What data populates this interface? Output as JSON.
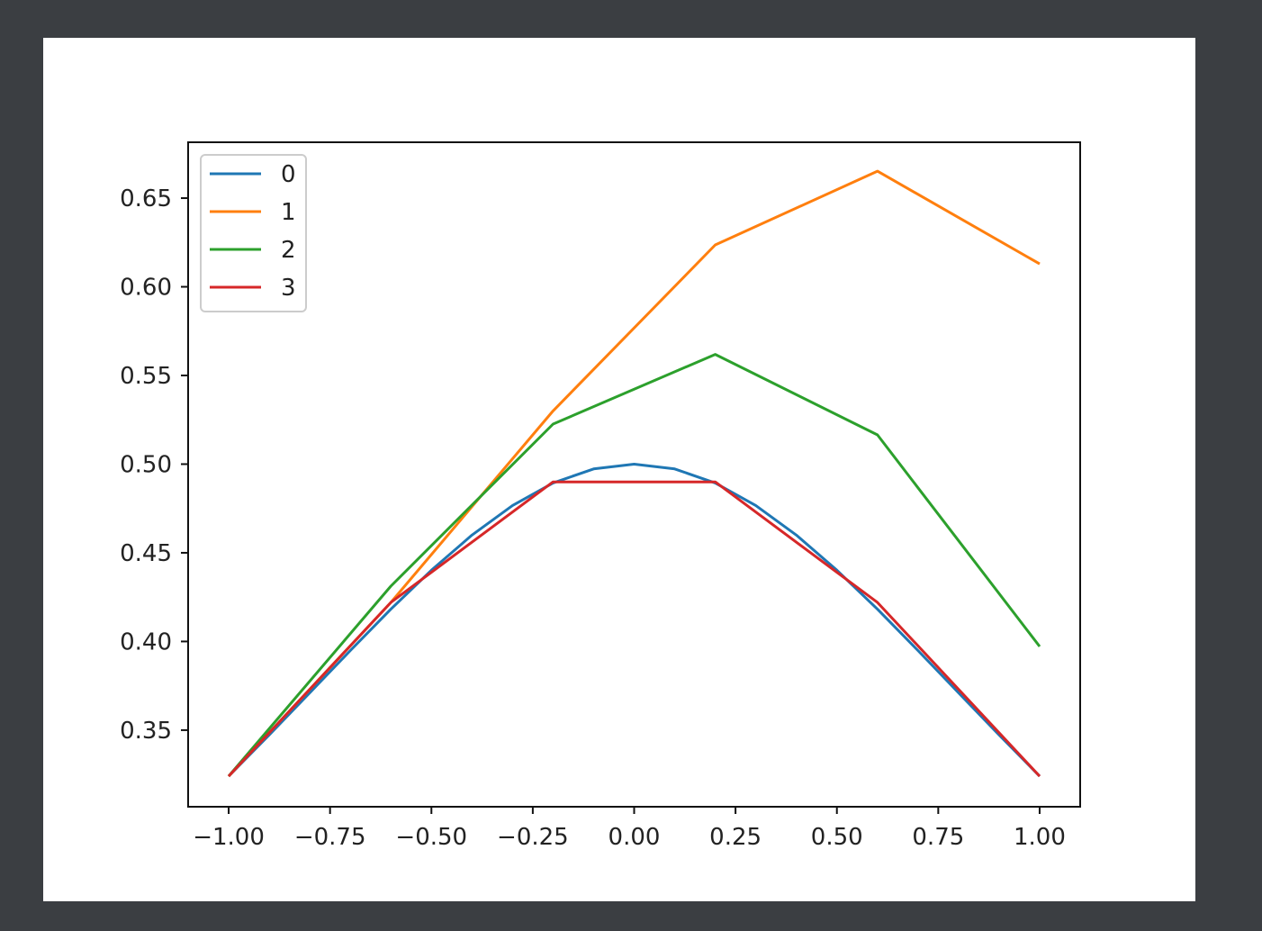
{
  "chart_data": {
    "type": "line",
    "title": "",
    "xlabel": "",
    "ylabel": "",
    "xlim": [
      -1.1,
      1.1
    ],
    "ylim": [
      0.3068,
      0.6815
    ],
    "xticks": [
      -1.0,
      -0.75,
      -0.5,
      -0.25,
      0.0,
      0.25,
      0.5,
      0.75,
      1.0
    ],
    "xtick_labels": [
      "−1.00",
      "−0.75",
      "−0.50",
      "−0.25",
      "0.00",
      "0.25",
      "0.50",
      "0.75",
      "1.00"
    ],
    "yticks": [
      0.35,
      0.4,
      0.45,
      0.5,
      0.55,
      0.6,
      0.65
    ],
    "ytick_labels": [
      "0.35",
      "0.40",
      "0.45",
      "0.50",
      "0.55",
      "0.60",
      "0.65"
    ],
    "grid": false,
    "legend_placement": "upper-left",
    "series": [
      {
        "name": "0",
        "color": "#1f77b4",
        "x": [
          -1.0,
          -0.9,
          -0.8,
          -0.7,
          -0.6,
          -0.5,
          -0.4,
          -0.3,
          -0.2,
          -0.1,
          0.0,
          0.1,
          0.2,
          0.3,
          0.4,
          0.5,
          0.6,
          0.7,
          0.8,
          0.9,
          1.0
        ],
        "y": [
          0.324,
          0.3473,
          0.3711,
          0.3949,
          0.4182,
          0.4402,
          0.46,
          0.4767,
          0.4894,
          0.4973,
          0.5,
          0.4973,
          0.4894,
          0.4767,
          0.46,
          0.4402,
          0.4182,
          0.3949,
          0.3711,
          0.3473,
          0.324
        ]
      },
      {
        "name": "1",
        "color": "#ff7f0e",
        "x": [
          -1.0,
          -0.6,
          -0.2,
          0.2,
          0.6,
          1.0
        ],
        "y": [
          0.324,
          0.422,
          0.53,
          0.6236,
          0.6652,
          0.6129
        ]
      },
      {
        "name": "2",
        "color": "#2ca02c",
        "x": [
          -1.0,
          -0.6,
          -0.2,
          0.2,
          0.6,
          1.0
        ],
        "y": [
          0.324,
          0.4312,
          0.5226,
          0.5619,
          0.5165,
          0.3972
        ]
      },
      {
        "name": "3",
        "color": "#d62728",
        "x": [
          -1.0,
          -0.6,
          -0.2,
          0.2,
          0.6,
          1.0
        ],
        "y": [
          0.324,
          0.422,
          0.49,
          0.49,
          0.422,
          0.324
        ]
      }
    ]
  }
}
